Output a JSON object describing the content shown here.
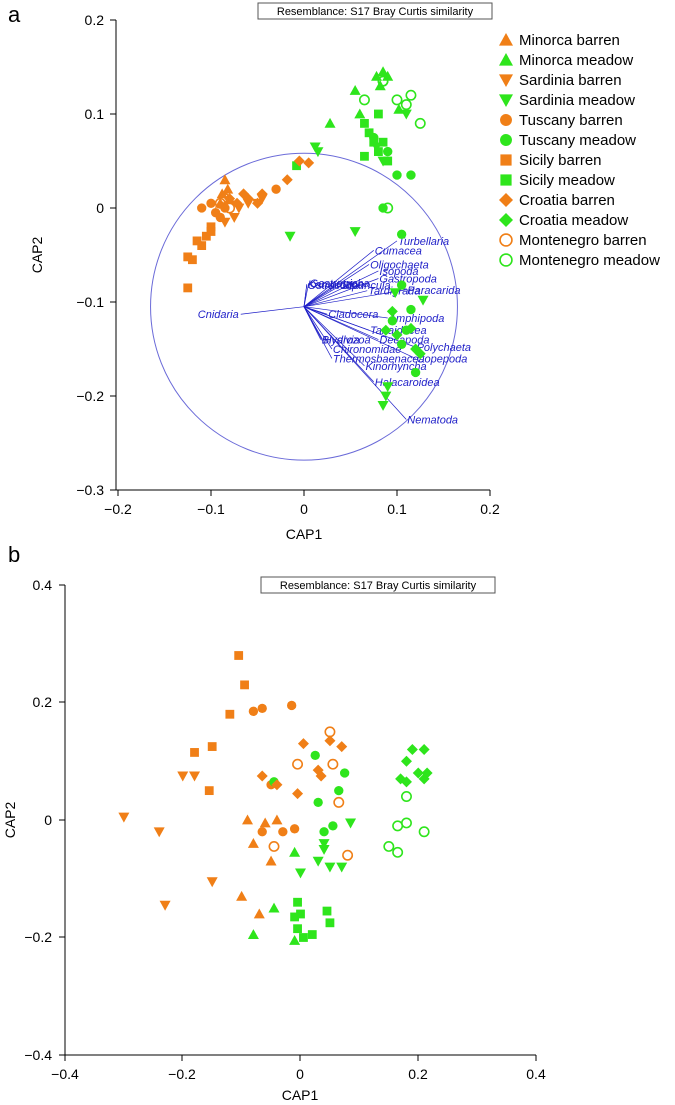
{
  "colors": {
    "barren": "#f07f17",
    "meadow": "#2ee51c",
    "vectors": "#1f1fc8",
    "circle": "#6a6ad8"
  },
  "panels": [
    {
      "letter": "a",
      "resemblance": "Resemblance: S17 Bray Curtis similarity",
      "xlabel": "CAP1",
      "ylabel": "CAP2",
      "xticks": [
        "−0.2",
        "−0.1",
        "0",
        "0.1",
        "0.2"
      ],
      "yticks": [
        "0.2",
        "0.1",
        "0",
        "−0.1",
        "−0.2",
        "−0.3"
      ]
    },
    {
      "letter": "b",
      "resemblance": "Resemblance: S17 Bray Curtis similarity",
      "xlabel": "CAP1",
      "ylabel": "CAP2",
      "xticks": [
        "−0.4",
        "−0.2",
        "0",
        "0.2",
        "0.4"
      ],
      "yticks": [
        "0.4",
        "0.2",
        "0",
        "−0.2",
        "−0.4"
      ]
    }
  ],
  "legend": [
    {
      "label": "Minorca barren",
      "marker": "triangle-up",
      "color": "barren",
      "fill": true
    },
    {
      "label": "Minorca meadow",
      "marker": "triangle-up",
      "color": "meadow",
      "fill": true
    },
    {
      "label": "Sardinia barren",
      "marker": "triangle-down",
      "color": "barren",
      "fill": true
    },
    {
      "label": "Sardinia meadow",
      "marker": "triangle-down",
      "color": "meadow",
      "fill": true
    },
    {
      "label": "Tuscany barren",
      "marker": "circle",
      "color": "barren",
      "fill": true
    },
    {
      "label": "Tuscany meadow",
      "marker": "circle",
      "color": "meadow",
      "fill": true
    },
    {
      "label": "Sicily barren",
      "marker": "square",
      "color": "barren",
      "fill": true
    },
    {
      "label": "Sicily meadow",
      "marker": "square",
      "color": "meadow",
      "fill": true
    },
    {
      "label": "Croatia barren",
      "marker": "diamond",
      "color": "barren",
      "fill": true
    },
    {
      "label": "Croatia meadow",
      "marker": "diamond",
      "color": "meadow",
      "fill": true
    },
    {
      "label": "Montenegro barren",
      "marker": "circle",
      "color": "barren",
      "fill": false
    },
    {
      "label": "Montenegro meadow",
      "marker": "circle",
      "color": "meadow",
      "fill": false
    }
  ],
  "chart_data": [
    {
      "type": "scatter",
      "panel": "a",
      "xlabel": "CAP1",
      "ylabel": "CAP2",
      "xlim": [
        -0.2,
        0.2
      ],
      "ylim": [
        -0.3,
        0.2
      ],
      "circle_radius": 0.165,
      "series": [
        {
          "name": "Minorca barren",
          "points": [
            [
              -0.085,
              0.03
            ],
            [
              -0.088,
              0.015
            ],
            [
              -0.082,
              0.02
            ],
            [
              -0.09,
              0.005
            ],
            [
              -0.08,
              0.01
            ]
          ]
        },
        {
          "name": "Minorca meadow",
          "points": [
            [
              0.078,
              0.14
            ],
            [
              0.082,
              0.13
            ],
            [
              0.06,
              0.1
            ],
            [
              0.102,
              0.105
            ],
            [
              0.09,
              0.14
            ],
            [
              0.055,
              0.125
            ],
            [
              0.028,
              0.09
            ],
            [
              0.085,
              0.145
            ]
          ]
        },
        {
          "name": "Sardinia barren",
          "points": [
            [
              -0.07,
              0.0
            ],
            [
              -0.075,
              -0.01
            ],
            [
              -0.06,
              0.005
            ],
            [
              -0.05,
              0.005
            ],
            [
              -0.085,
              -0.015
            ],
            [
              -0.045,
              0.01
            ]
          ]
        },
        {
          "name": "Sardinia meadow",
          "points": [
            [
              0.012,
              0.065
            ],
            [
              0.015,
              0.06
            ],
            [
              -0.015,
              -0.03
            ],
            [
              0.055,
              -0.025
            ],
            [
              0.098,
              -0.09
            ],
            [
              0.128,
              -0.098
            ],
            [
              0.088,
              -0.2
            ],
            [
              0.085,
              -0.21
            ],
            [
              0.09,
              -0.19
            ],
            [
              0.085,
              0.05
            ],
            [
              0.11,
              0.1
            ],
            [
              0.078,
              0.065
            ]
          ]
        },
        {
          "name": "Tuscany barren",
          "points": [
            [
              -0.11,
              0.0
            ],
            [
              -0.1,
              0.005
            ],
            [
              -0.095,
              -0.005
            ],
            [
              -0.03,
              0.02
            ],
            [
              -0.085,
              0.0
            ],
            [
              -0.09,
              -0.01
            ]
          ]
        },
        {
          "name": "Tuscany meadow",
          "points": [
            [
              0.085,
              0.0
            ],
            [
              0.1,
              0.035
            ],
            [
              0.115,
              0.035
            ],
            [
              0.105,
              -0.028
            ],
            [
              0.075,
              0.075
            ],
            [
              0.105,
              -0.082
            ],
            [
              0.115,
              -0.108
            ],
            [
              0.095,
              -0.12
            ],
            [
              0.11,
              -0.13
            ],
            [
              0.105,
              -0.145
            ],
            [
              0.12,
              -0.175
            ],
            [
              0.09,
              0.06
            ]
          ]
        },
        {
          "name": "Sicily barren",
          "points": [
            [
              -0.125,
              -0.085
            ],
            [
              -0.12,
              -0.055
            ],
            [
              -0.125,
              -0.052
            ],
            [
              -0.11,
              -0.04
            ],
            [
              -0.105,
              -0.03
            ],
            [
              -0.1,
              -0.02
            ],
            [
              -0.115,
              -0.035
            ],
            [
              -0.1,
              -0.025
            ]
          ]
        },
        {
          "name": "Sicily meadow",
          "points": [
            [
              -0.008,
              0.045
            ],
            [
              0.065,
              0.09
            ],
            [
              0.07,
              0.08
            ],
            [
              0.08,
              0.06
            ],
            [
              0.085,
              0.07
            ],
            [
              0.075,
              0.07
            ],
            [
              0.08,
              0.1
            ],
            [
              0.065,
              0.055
            ],
            [
              0.09,
              0.05
            ]
          ]
        },
        {
          "name": "Croatia barren",
          "points": [
            [
              -0.05,
              0.005
            ],
            [
              -0.045,
              0.015
            ],
            [
              -0.018,
              0.03
            ],
            [
              -0.06,
              0.01
            ],
            [
              -0.08,
              0.01
            ],
            [
              -0.072,
              0.005
            ],
            [
              -0.065,
              0.015
            ],
            [
              -0.005,
              0.05
            ],
            [
              0.005,
              0.048
            ]
          ]
        },
        {
          "name": "Croatia meadow",
          "points": [
            [
              0.095,
              -0.11
            ],
            [
              0.088,
              -0.13
            ],
            [
              0.1,
              -0.135
            ],
            [
              0.115,
              -0.128
            ],
            [
              0.12,
              -0.15
            ],
            [
              0.125,
              -0.155
            ]
          ]
        },
        {
          "name": "Montenegro barren",
          "points": [
            [
              -0.085,
              0.01
            ],
            [
              -0.09,
              0.005
            ],
            [
              -0.08,
              0.0
            ]
          ]
        },
        {
          "name": "Montenegro meadow",
          "points": [
            [
              0.065,
              0.115
            ],
            [
              0.085,
              0.135
            ],
            [
              0.1,
              0.115
            ],
            [
              0.11,
              0.11
            ],
            [
              0.115,
              0.12
            ],
            [
              0.125,
              0.09
            ],
            [
              0.09,
              0.0
            ],
            [
              0.085,
              0.135
            ]
          ]
        }
      ],
      "vectors": [
        {
          "label": "Turbellaria",
          "x": 0.1,
          "y": -0.035
        },
        {
          "label": "Cumacea",
          "x": 0.075,
          "y": -0.045
        },
        {
          "label": "Oligochaeta",
          "x": 0.07,
          "y": -0.06
        },
        {
          "label": "Isopoda",
          "x": 0.08,
          "y": -0.067
        },
        {
          "label": "Gastropoda",
          "x": 0.08,
          "y": -0.075
        },
        {
          "label": "Gastrotricha",
          "x": 0.005,
          "y": -0.08
        },
        {
          "label": "Ostracoda",
          "x": 0.003,
          "y": -0.082
        },
        {
          "label": "Kamptozoa",
          "x": 0.003,
          "y": -0.081
        },
        {
          "label": "Sipuncula",
          "x": 0.04,
          "y": -0.082
        },
        {
          "label": "Tardigrada",
          "x": 0.068,
          "y": -0.088
        },
        {
          "label": "Paracarida",
          "x": 0.11,
          "y": -0.087
        },
        {
          "label": "Cnidaria",
          "x": -0.068,
          "y": -0.113
        },
        {
          "label": "Cladocera",
          "x": 0.025,
          "y": -0.113
        },
        {
          "label": "Amphipoda",
          "x": 0.09,
          "y": -0.117
        },
        {
          "label": "Tanaidacea",
          "x": 0.07,
          "y": -0.13
        },
        {
          "label": "Bivalvia",
          "x": 0.018,
          "y": -0.14
        },
        {
          "label": "Hydrozoa",
          "x": 0.02,
          "y": -0.14
        },
        {
          "label": "Decapoda",
          "x": 0.08,
          "y": -0.14
        },
        {
          "label": "Polychaeta",
          "x": 0.12,
          "y": -0.148
        },
        {
          "label": "Chironomidae",
          "x": 0.03,
          "y": -0.15
        },
        {
          "label": "Thermosbaenacea",
          "x": 0.03,
          "y": -0.16
        },
        {
          "label": "Copepoda",
          "x": 0.12,
          "y": -0.16
        },
        {
          "label": "Kinorhyncha",
          "x": 0.065,
          "y": -0.168
        },
        {
          "label": "Halacaroidea",
          "x": 0.075,
          "y": -0.185
        },
        {
          "label": "Nematoda",
          "x": 0.11,
          "y": -0.225
        }
      ]
    },
    {
      "type": "scatter",
      "panel": "b",
      "xlabel": "CAP1",
      "ylabel": "CAP2",
      "xlim": [
        -0.4,
        0.4
      ],
      "ylim": [
        -0.4,
        0.4
      ],
      "series": [
        {
          "name": "Minorca barren",
          "points": [
            [
              -0.09,
              0.0
            ],
            [
              -0.06,
              -0.005
            ],
            [
              -0.04,
              0.0
            ],
            [
              -0.08,
              -0.04
            ],
            [
              -0.05,
              -0.07
            ],
            [
              -0.1,
              -0.13
            ],
            [
              -0.07,
              -0.16
            ]
          ]
        },
        {
          "name": "Minorca meadow",
          "points": [
            [
              -0.08,
              -0.195
            ],
            [
              -0.045,
              -0.15
            ],
            [
              -0.01,
              -0.205
            ],
            [
              -0.01,
              -0.055
            ]
          ]
        },
        {
          "name": "Sardinia barren",
          "points": [
            [
              -0.3,
              0.005
            ],
            [
              -0.24,
              -0.02
            ],
            [
              -0.2,
              0.075
            ],
            [
              -0.18,
              0.075
            ],
            [
              -0.15,
              -0.105
            ],
            [
              -0.23,
              -0.145
            ]
          ]
        },
        {
          "name": "Sardinia meadow",
          "points": [
            [
              0.0,
              -0.09
            ],
            [
              0.04,
              -0.05
            ],
            [
              0.05,
              -0.08
            ],
            [
              0.07,
              -0.08
            ],
            [
              0.085,
              -0.005
            ],
            [
              0.04,
              -0.04
            ],
            [
              0.03,
              -0.07
            ]
          ]
        },
        {
          "name": "Tuscany barren",
          "points": [
            [
              -0.08,
              0.185
            ],
            [
              -0.065,
              0.19
            ],
            [
              -0.015,
              0.195
            ],
            [
              -0.05,
              0.06
            ],
            [
              -0.03,
              -0.02
            ],
            [
              -0.01,
              -0.015
            ],
            [
              -0.065,
              -0.02
            ]
          ]
        },
        {
          "name": "Tuscany meadow",
          "points": [
            [
              -0.045,
              0.065
            ],
            [
              0.025,
              0.11
            ],
            [
              0.075,
              0.08
            ],
            [
              0.065,
              0.05
            ],
            [
              0.03,
              0.03
            ],
            [
              0.04,
              -0.02
            ],
            [
              0.055,
              -0.01
            ]
          ]
        },
        {
          "name": "Sicily barren",
          "points": [
            [
              -0.105,
              0.28
            ],
            [
              -0.095,
              0.23
            ],
            [
              -0.12,
              0.18
            ],
            [
              -0.18,
              0.115
            ],
            [
              -0.15,
              0.125
            ],
            [
              -0.155,
              0.05
            ]
          ]
        },
        {
          "name": "Sicily meadow",
          "points": [
            [
              -0.005,
              -0.14
            ],
            [
              -0.01,
              -0.165
            ],
            [
              0.0,
              -0.16
            ],
            [
              -0.005,
              -0.185
            ],
            [
              0.02,
              -0.195
            ],
            [
              0.005,
              -0.2
            ],
            [
              0.045,
              -0.155
            ],
            [
              0.05,
              -0.175
            ]
          ]
        },
        {
          "name": "Croatia barren",
          "points": [
            [
              0.005,
              0.13
            ],
            [
              0.03,
              0.085
            ],
            [
              0.05,
              0.135
            ],
            [
              0.07,
              0.125
            ],
            [
              -0.065,
              0.075
            ],
            [
              -0.04,
              0.06
            ],
            [
              -0.005,
              0.045
            ],
            [
              0.035,
              0.075
            ]
          ]
        },
        {
          "name": "Croatia meadow",
          "points": [
            [
              0.18,
              0.1
            ],
            [
              0.19,
              0.12
            ],
            [
              0.2,
              0.08
            ],
            [
              0.21,
              0.12
            ],
            [
              0.21,
              0.07
            ],
            [
              0.215,
              0.08
            ],
            [
              0.17,
              0.07
            ],
            [
              0.18,
              0.065
            ]
          ]
        },
        {
          "name": "Montenegro barren",
          "points": [
            [
              0.05,
              0.15
            ],
            [
              -0.005,
              0.095
            ],
            [
              0.065,
              0.03
            ],
            [
              0.08,
              -0.06
            ],
            [
              -0.045,
              -0.045
            ],
            [
              0.055,
              0.095
            ]
          ]
        },
        {
          "name": "Montenegro meadow",
          "points": [
            [
              0.18,
              0.04
            ],
            [
              0.18,
              -0.005
            ],
            [
              0.165,
              -0.01
            ],
            [
              0.21,
              -0.02
            ],
            [
              0.15,
              -0.045
            ],
            [
              0.165,
              -0.055
            ]
          ]
        }
      ]
    }
  ]
}
